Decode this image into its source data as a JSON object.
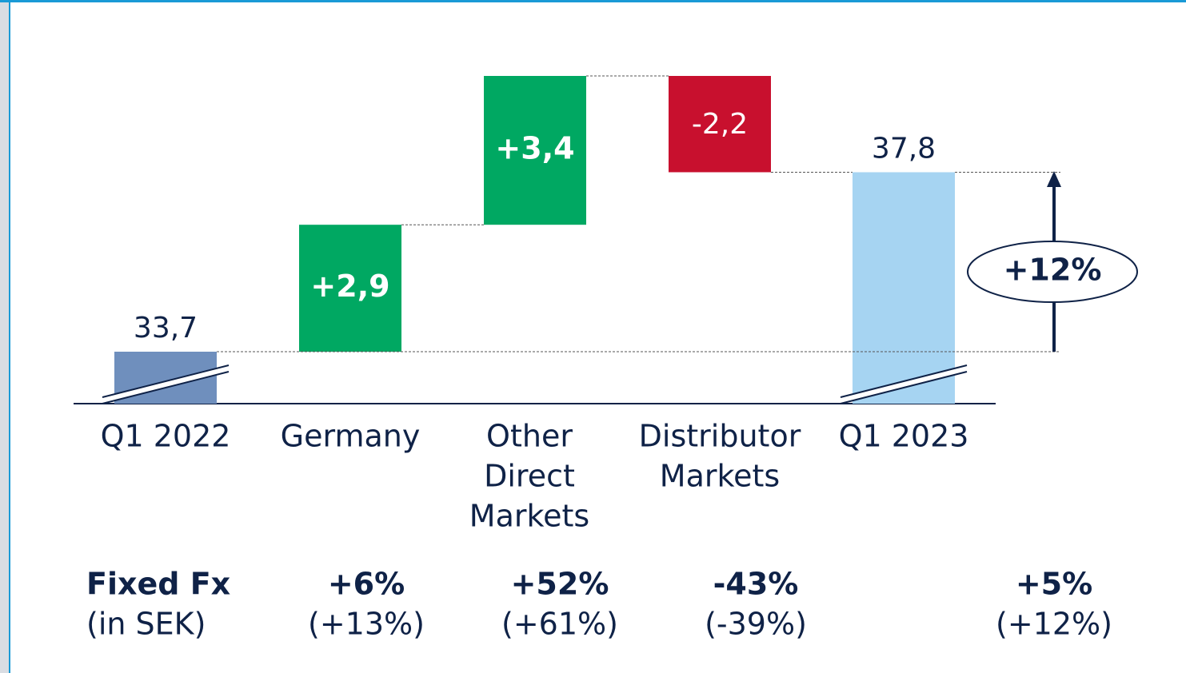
{
  "chart_data": {
    "type": "waterfall",
    "categories": [
      [
        "Q1 2022"
      ],
      [
        "Germany"
      ],
      [
        "Other",
        "Direct",
        "Markets"
      ],
      [
        "Distributor",
        "Markets"
      ],
      [
        "Q1 2023"
      ]
    ],
    "values": [
      33.7,
      2.9,
      3.4,
      -2.2,
      37.8
    ],
    "value_labels": [
      "33,7",
      "+2,9",
      "+3,4",
      "-2,2",
      "37,8"
    ],
    "totals": [
      true,
      false,
      false,
      false,
      true
    ],
    "colors": [
      "#6f8fbd",
      "#00a862",
      "#00a862",
      "#c8102e",
      "#a6d4f2"
    ],
    "annotation": "+12%",
    "fixed_fx": {
      "label": "Fixed Fx",
      "sublabel": "(in SEK)",
      "values": [
        null,
        "+6%",
        "+52%",
        "-43%",
        "+5%"
      ],
      "sek_values": [
        null,
        "(+13%)",
        "(+61%)",
        "(-39%)",
        "(+12%)"
      ]
    }
  }
}
